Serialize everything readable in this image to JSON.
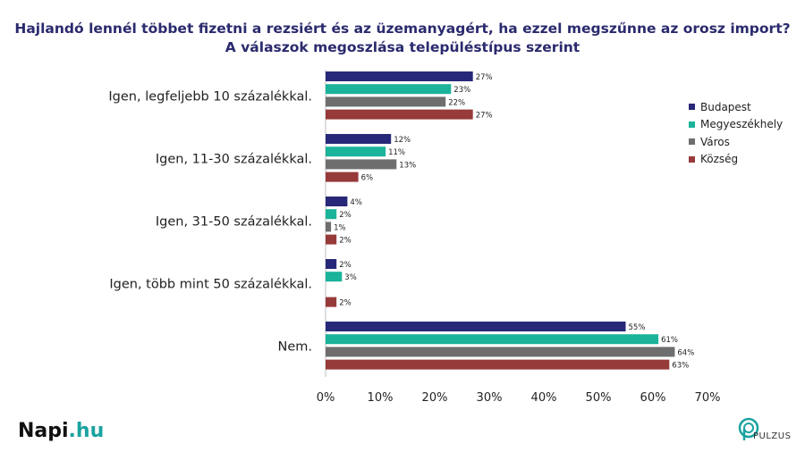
{
  "chart_data": {
    "type": "bar",
    "orientation": "horizontal",
    "title_line1": "Hajlandó lennél többet fizetni a rezsiért és az üzemanyagért, ha ezzel megszűnne az orosz import?",
    "title_line2": "A válaszok megoszlása településtípus szerint",
    "categories": [
      "Igen, legfeljebb 10 százalékkal.",
      "Igen, 11-30 százalékkal.",
      "Igen, 31-50 százalékkal.",
      "Igen, több mint 50 százalékkal.",
      "Nem."
    ],
    "series": [
      {
        "name": "Budapest",
        "color": "#28287a",
        "values": [
          27,
          12,
          4,
          2,
          55
        ]
      },
      {
        "name": "Megyeszékhely",
        "color": "#1bb39a",
        "values": [
          23,
          11,
          2,
          3,
          61
        ]
      },
      {
        "name": "Város",
        "color": "#6e6e6e",
        "values": [
          22,
          13,
          1,
          null,
          64
        ]
      },
      {
        "name": "Község",
        "color": "#973a3a",
        "values": [
          27,
          6,
          2,
          2,
          63
        ]
      }
    ],
    "xlim": [
      0,
      70
    ],
    "xticks": [
      "0%",
      "10%",
      "20%",
      "30%",
      "40%",
      "50%",
      "60%",
      "70%"
    ],
    "value_suffix": "%",
    "legend_position": "right",
    "grid": false
  },
  "branding": {
    "left_logo_main": "Napi",
    "left_logo_tld": ".hu",
    "right_logo": "PULZUS"
  }
}
